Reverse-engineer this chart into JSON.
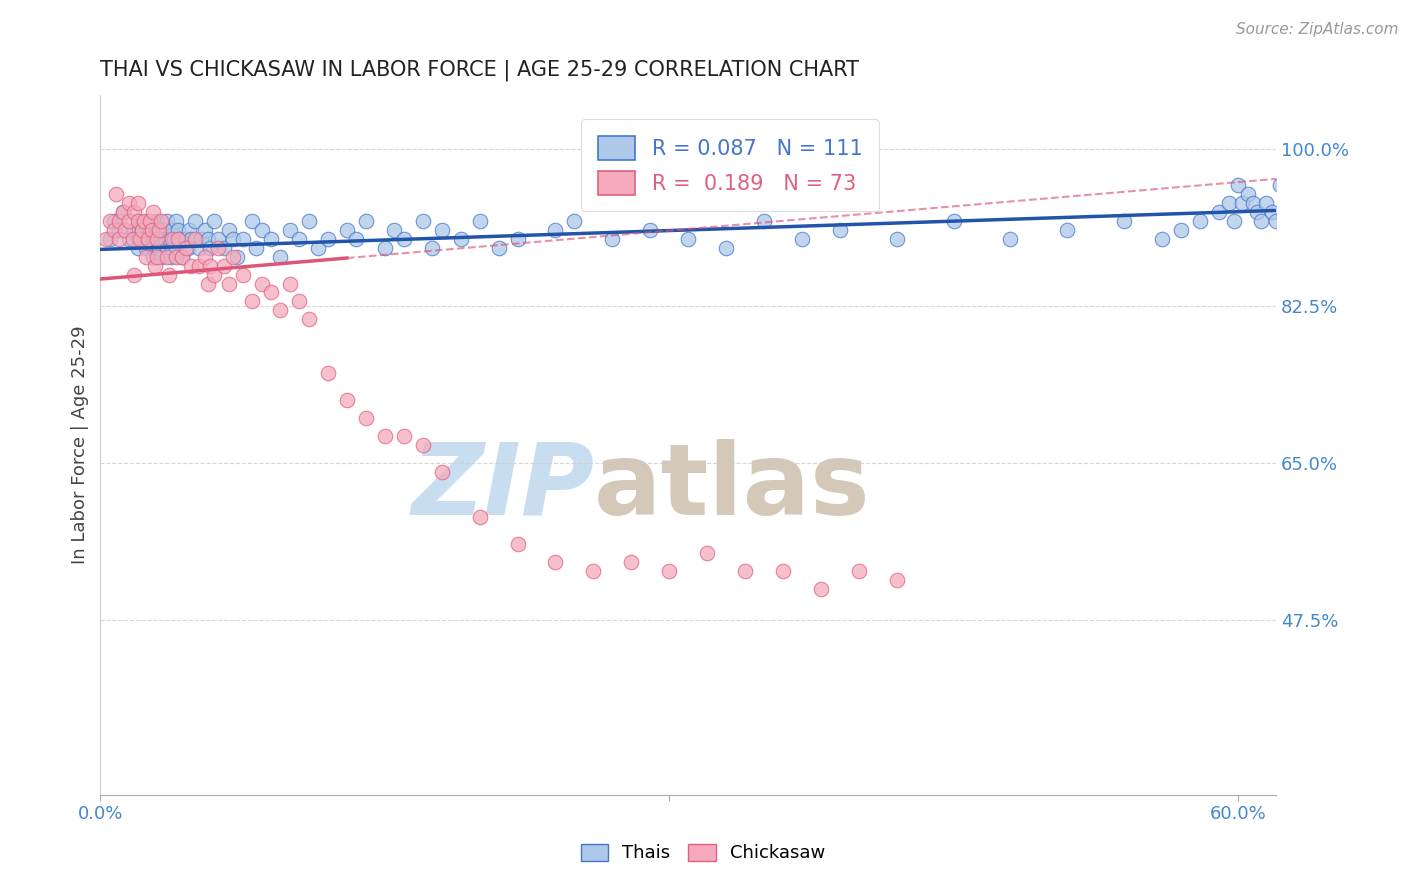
{
  "title": "THAI VS CHICKASAW IN LABOR FORCE | AGE 25-29 CORRELATION CHART",
  "source_text": "Source: ZipAtlas.com",
  "ylabel": "In Labor Force | Age 25-29",
  "xlim": [
    0.0,
    0.62
  ],
  "ylim": [
    0.28,
    1.06
  ],
  "yticks": [
    0.475,
    0.65,
    0.825,
    1.0
  ],
  "yticklabels": [
    "47.5%",
    "65.0%",
    "82.5%",
    "100.0%"
  ],
  "xtick_left_val": 0.0,
  "xtick_mid_val": 0.3,
  "xtick_right_val": 0.6,
  "legend_labels": [
    "Thais",
    "Chickasaw"
  ],
  "r_thai": 0.087,
  "n_thai": 111,
  "r_chickasaw": 0.189,
  "n_chickasaw": 73,
  "blue_fill": "#adc8e8",
  "blue_edge": "#4477cc",
  "pink_fill": "#f4aabb",
  "pink_edge": "#e06080",
  "blue_line_color": "#2255aa",
  "pink_line_color": "#dd5577",
  "title_color": "#222222",
  "axis_label_color": "#444444",
  "tick_label_color": "#4488cc",
  "watermark_zip_color": "#c8ddf0",
  "watermark_atlas_color": "#d4c8b8",
  "grid_color": "#cccccc",
  "thai_x": [
    0.005,
    0.007,
    0.01,
    0.012,
    0.015,
    0.018,
    0.02,
    0.02,
    0.02,
    0.022,
    0.023,
    0.024,
    0.025,
    0.025,
    0.026,
    0.027,
    0.028,
    0.028,
    0.029,
    0.03,
    0.03,
    0.031,
    0.032,
    0.032,
    0.033,
    0.034,
    0.035,
    0.035,
    0.036,
    0.037,
    0.038,
    0.038,
    0.039,
    0.04,
    0.04,
    0.041,
    0.042,
    0.043,
    0.045,
    0.046,
    0.047,
    0.048,
    0.05,
    0.052,
    0.053,
    0.055,
    0.057,
    0.058,
    0.06,
    0.062,
    0.065,
    0.068,
    0.07,
    0.072,
    0.075,
    0.08,
    0.082,
    0.085,
    0.09,
    0.095,
    0.1,
    0.105,
    0.11,
    0.115,
    0.12,
    0.13,
    0.135,
    0.14,
    0.15,
    0.155,
    0.16,
    0.17,
    0.175,
    0.18,
    0.19,
    0.2,
    0.21,
    0.22,
    0.24,
    0.25,
    0.27,
    0.29,
    0.31,
    0.33,
    0.35,
    0.37,
    0.39,
    0.42,
    0.45,
    0.48,
    0.51,
    0.54,
    0.56,
    0.57,
    0.58,
    0.59,
    0.595,
    0.598,
    0.6,
    0.602,
    0.605,
    0.608,
    0.61,
    0.612,
    0.615,
    0.618,
    0.62,
    0.622,
    0.625,
    0.628,
    0.63
  ],
  "thai_y": [
    0.9,
    0.92,
    0.91,
    0.93,
    0.9,
    0.91,
    0.92,
    0.9,
    0.89,
    0.91,
    0.9,
    0.89,
    0.92,
    0.9,
    0.91,
    0.9,
    0.89,
    0.88,
    0.9,
    0.92,
    0.91,
    0.89,
    0.9,
    0.88,
    0.91,
    0.9,
    0.92,
    0.89,
    0.9,
    0.88,
    0.91,
    0.89,
    0.9,
    0.92,
    0.89,
    0.91,
    0.9,
    0.88,
    0.9,
    0.89,
    0.91,
    0.9,
    0.92,
    0.89,
    0.9,
    0.91,
    0.9,
    0.89,
    0.92,
    0.9,
    0.89,
    0.91,
    0.9,
    0.88,
    0.9,
    0.92,
    0.89,
    0.91,
    0.9,
    0.88,
    0.91,
    0.9,
    0.92,
    0.89,
    0.9,
    0.91,
    0.9,
    0.92,
    0.89,
    0.91,
    0.9,
    0.92,
    0.89,
    0.91,
    0.9,
    0.92,
    0.89,
    0.9,
    0.91,
    0.92,
    0.9,
    0.91,
    0.9,
    0.89,
    0.92,
    0.9,
    0.91,
    0.9,
    0.92,
    0.9,
    0.91,
    0.92,
    0.9,
    0.91,
    0.92,
    0.93,
    0.94,
    0.92,
    0.96,
    0.94,
    0.95,
    0.94,
    0.93,
    0.92,
    0.94,
    0.93,
    0.92,
    0.96,
    0.95,
    0.94,
    0.97
  ],
  "chickasaw_x": [
    0.003,
    0.005,
    0.007,
    0.008,
    0.01,
    0.01,
    0.012,
    0.013,
    0.015,
    0.015,
    0.017,
    0.018,
    0.018,
    0.02,
    0.02,
    0.021,
    0.022,
    0.023,
    0.024,
    0.025,
    0.026,
    0.027,
    0.028,
    0.029,
    0.03,
    0.03,
    0.031,
    0.032,
    0.035,
    0.036,
    0.038,
    0.04,
    0.041,
    0.043,
    0.045,
    0.048,
    0.05,
    0.052,
    0.055,
    0.057,
    0.058,
    0.06,
    0.062,
    0.065,
    0.068,
    0.07,
    0.075,
    0.08,
    0.085,
    0.09,
    0.095,
    0.1,
    0.105,
    0.11,
    0.12,
    0.13,
    0.14,
    0.15,
    0.16,
    0.17,
    0.18,
    0.2,
    0.22,
    0.24,
    0.26,
    0.28,
    0.3,
    0.32,
    0.34,
    0.36,
    0.38,
    0.4,
    0.42
  ],
  "chickasaw_y": [
    0.9,
    0.92,
    0.91,
    0.95,
    0.92,
    0.9,
    0.93,
    0.91,
    0.94,
    0.92,
    0.9,
    0.93,
    0.86,
    0.94,
    0.92,
    0.9,
    0.91,
    0.92,
    0.88,
    0.9,
    0.92,
    0.91,
    0.93,
    0.87,
    0.9,
    0.88,
    0.91,
    0.92,
    0.88,
    0.86,
    0.9,
    0.88,
    0.9,
    0.88,
    0.89,
    0.87,
    0.9,
    0.87,
    0.88,
    0.85,
    0.87,
    0.86,
    0.89,
    0.87,
    0.85,
    0.88,
    0.86,
    0.83,
    0.85,
    0.84,
    0.82,
    0.85,
    0.83,
    0.81,
    0.75,
    0.72,
    0.7,
    0.68,
    0.68,
    0.67,
    0.64,
    0.59,
    0.56,
    0.54,
    0.53,
    0.54,
    0.53,
    0.55,
    0.53,
    0.53,
    0.51,
    0.53,
    0.52
  ]
}
